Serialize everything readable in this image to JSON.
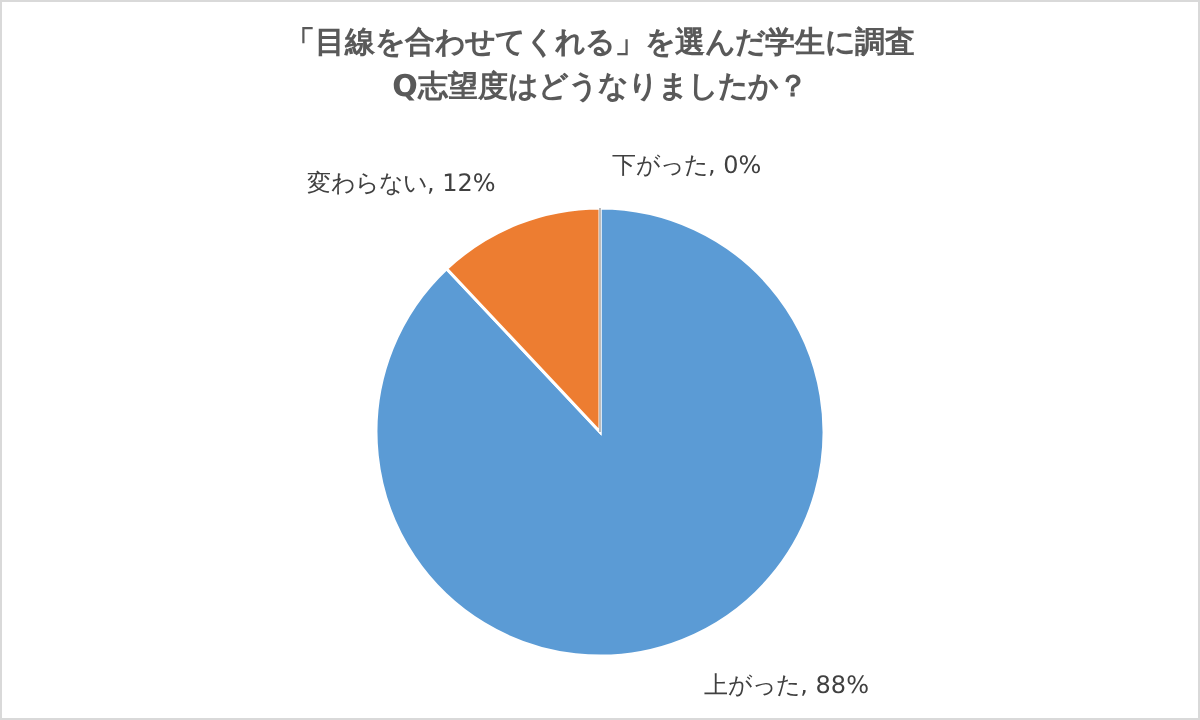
{
  "chart_data": {
    "type": "pie",
    "title": "「目線を合わせてくれる」を選んだ学生に調査\nQ志望度はどうなりましたか？",
    "categories": [
      "上がった",
      "変わらない",
      "下がった"
    ],
    "values": [
      88,
      12,
      0
    ],
    "value_labels": [
      ", 88%",
      ", 12%",
      ", 0%"
    ],
    "colors": [
      "#5b9bd5",
      "#ed7d31",
      "#a5a5a5"
    ],
    "legend": false
  }
}
